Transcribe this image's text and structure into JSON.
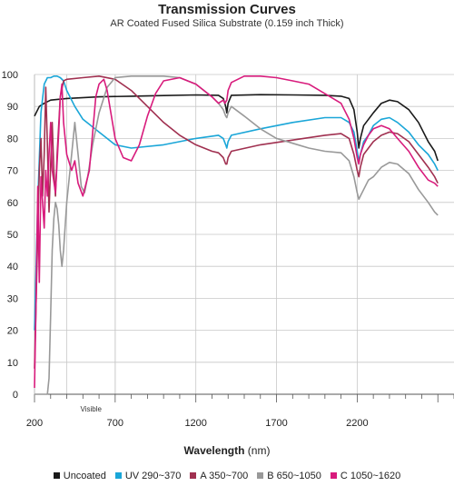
{
  "chart_data": {
    "type": "line",
    "title": "Transmission Curves",
    "subtitle": "AR Coated Fused Silica Substrate (0.159 inch Thick)",
    "xlabel": "Wavelength",
    "xunit": "(nm)",
    "ylabel": "",
    "xlim": [
      200,
      2800
    ],
    "ylim": [
      0,
      100
    ],
    "x_ticks": [
      200,
      700,
      1200,
      1700,
      2200
    ],
    "y_ticks": [
      0,
      10,
      20,
      30,
      40,
      50,
      60,
      70,
      80,
      90,
      100
    ],
    "annotation": "Visible",
    "visible_band": [
      400,
      700
    ],
    "grid": true,
    "legend_position": "bottom",
    "series": [
      {
        "name": "Uncoated",
        "color": "#1a1a1a",
        "points": [
          [
            200,
            87
          ],
          [
            230,
            90
          ],
          [
            260,
            91
          ],
          [
            300,
            92
          ],
          [
            400,
            92.5
          ],
          [
            600,
            93
          ],
          [
            800,
            93.2
          ],
          [
            1000,
            93.4
          ],
          [
            1200,
            93.6
          ],
          [
            1340,
            93.5
          ],
          [
            1370,
            92.5
          ],
          [
            1385,
            90
          ],
          [
            1392,
            88
          ],
          [
            1400,
            91
          ],
          [
            1420,
            93.5
          ],
          [
            1600,
            93.7
          ],
          [
            1800,
            93.6
          ],
          [
            2000,
            93.5
          ],
          [
            2100,
            93.2
          ],
          [
            2150,
            92.5
          ],
          [
            2180,
            89
          ],
          [
            2200,
            82
          ],
          [
            2210,
            77
          ],
          [
            2220,
            80
          ],
          [
            2240,
            84
          ],
          [
            2270,
            86
          ],
          [
            2300,
            88
          ],
          [
            2350,
            91
          ],
          [
            2400,
            92
          ],
          [
            2450,
            91.5
          ],
          [
            2520,
            89
          ],
          [
            2580,
            85
          ],
          [
            2640,
            79
          ],
          [
            2680,
            76
          ],
          [
            2700,
            73
          ]
        ]
      },
      {
        "name": "UV 290~370",
        "color": "#1aa6d8",
        "points": [
          [
            200,
            20
          ],
          [
            220,
            60
          ],
          [
            240,
            88
          ],
          [
            260,
            97
          ],
          [
            280,
            99
          ],
          [
            300,
            99
          ],
          [
            320,
            99.5
          ],
          [
            340,
            99.5
          ],
          [
            360,
            99
          ],
          [
            380,
            98
          ],
          [
            400,
            95
          ],
          [
            450,
            90
          ],
          [
            500,
            86
          ],
          [
            600,
            82
          ],
          [
            700,
            78
          ],
          [
            800,
            77
          ],
          [
            1000,
            78
          ],
          [
            1200,
            80
          ],
          [
            1340,
            81
          ],
          [
            1370,
            80
          ],
          [
            1385,
            78
          ],
          [
            1392,
            77
          ],
          [
            1400,
            79
          ],
          [
            1420,
            81
          ],
          [
            1600,
            83
          ],
          [
            1800,
            85
          ],
          [
            2000,
            86.5
          ],
          [
            2100,
            86.5
          ],
          [
            2150,
            85
          ],
          [
            2180,
            82
          ],
          [
            2200,
            76
          ],
          [
            2210,
            73
          ],
          [
            2220,
            75
          ],
          [
            2240,
            79
          ],
          [
            2270,
            81
          ],
          [
            2300,
            84
          ],
          [
            2350,
            86
          ],
          [
            2400,
            86.5
          ],
          [
            2450,
            85
          ],
          [
            2520,
            82
          ],
          [
            2580,
            78
          ],
          [
            2640,
            75
          ],
          [
            2680,
            72
          ],
          [
            2700,
            70
          ]
        ]
      },
      {
        "name": "A 350~700",
        "color": "#a03050",
        "points": [
          [
            200,
            8
          ],
          [
            215,
            40
          ],
          [
            230,
            70
          ],
          [
            240,
            80
          ],
          [
            250,
            62
          ],
          [
            260,
            75
          ],
          [
            270,
            96
          ],
          [
            280,
            78
          ],
          [
            290,
            57
          ],
          [
            300,
            72
          ],
          [
            310,
            85
          ],
          [
            320,
            70
          ],
          [
            330,
            62
          ],
          [
            340,
            75
          ],
          [
            360,
            93
          ],
          [
            380,
            98
          ],
          [
            400,
            98.5
          ],
          [
            500,
            99
          ],
          [
            600,
            99.5
          ],
          [
            700,
            98.5
          ],
          [
            800,
            95
          ],
          [
            900,
            90
          ],
          [
            1000,
            85
          ],
          [
            1100,
            81
          ],
          [
            1200,
            78
          ],
          [
            1300,
            76
          ],
          [
            1340,
            75.5
          ],
          [
            1370,
            74
          ],
          [
            1385,
            72
          ],
          [
            1392,
            72
          ],
          [
            1400,
            74
          ],
          [
            1420,
            76
          ],
          [
            1600,
            78
          ],
          [
            1800,
            79.5
          ],
          [
            2000,
            81
          ],
          [
            2100,
            81.5
          ],
          [
            2150,
            80
          ],
          [
            2180,
            75
          ],
          [
            2200,
            70
          ],
          [
            2210,
            68
          ],
          [
            2220,
            71
          ],
          [
            2240,
            75
          ],
          [
            2270,
            77
          ],
          [
            2300,
            79
          ],
          [
            2350,
            81
          ],
          [
            2400,
            82
          ],
          [
            2450,
            81.5
          ],
          [
            2520,
            79
          ],
          [
            2580,
            75
          ],
          [
            2640,
            71
          ],
          [
            2680,
            68
          ],
          [
            2700,
            66
          ]
        ]
      },
      {
        "name": "B 650~1050",
        "color": "#999999",
        "points": [
          [
            200,
            0
          ],
          [
            260,
            0
          ],
          [
            280,
            0
          ],
          [
            290,
            5
          ],
          [
            300,
            25
          ],
          [
            310,
            45
          ],
          [
            320,
            55
          ],
          [
            330,
            60
          ],
          [
            340,
            58
          ],
          [
            350,
            53
          ],
          [
            360,
            45
          ],
          [
            370,
            40
          ],
          [
            380,
            45
          ],
          [
            400,
            60
          ],
          [
            430,
            75
          ],
          [
            450,
            85
          ],
          [
            470,
            75
          ],
          [
            490,
            65
          ],
          [
            510,
            63
          ],
          [
            530,
            68
          ],
          [
            560,
            78
          ],
          [
            600,
            88
          ],
          [
            650,
            96
          ],
          [
            700,
            99
          ],
          [
            800,
            99.5
          ],
          [
            900,
            99.5
          ],
          [
            1000,
            99.5
          ],
          [
            1100,
            99
          ],
          [
            1200,
            97
          ],
          [
            1300,
            93
          ],
          [
            1340,
            91
          ],
          [
            1370,
            89
          ],
          [
            1385,
            87
          ],
          [
            1392,
            86.5
          ],
          [
            1400,
            88
          ],
          [
            1420,
            90
          ],
          [
            1500,
            87
          ],
          [
            1600,
            83
          ],
          [
            1700,
            80
          ],
          [
            1800,
            78.5
          ],
          [
            1900,
            77
          ],
          [
            2000,
            76
          ],
          [
            2100,
            75.5
          ],
          [
            2150,
            73
          ],
          [
            2180,
            68
          ],
          [
            2200,
            63
          ],
          [
            2210,
            61
          ],
          [
            2220,
            62
          ],
          [
            2240,
            64
          ],
          [
            2270,
            67
          ],
          [
            2300,
            68
          ],
          [
            2350,
            71
          ],
          [
            2400,
            72.5
          ],
          [
            2450,
            72
          ],
          [
            2520,
            69
          ],
          [
            2580,
            64
          ],
          [
            2640,
            60
          ],
          [
            2680,
            57
          ],
          [
            2700,
            56
          ]
        ]
      },
      {
        "name": "C 1050~1620",
        "color": "#d81b7c",
        "points": [
          [
            200,
            2
          ],
          [
            210,
            30
          ],
          [
            220,
            65
          ],
          [
            230,
            35
          ],
          [
            240,
            68
          ],
          [
            250,
            60
          ],
          [
            260,
            52
          ],
          [
            270,
            70
          ],
          [
            280,
            62
          ],
          [
            290,
            75
          ],
          [
            300,
            85
          ],
          [
            310,
            70
          ],
          [
            330,
            63
          ],
          [
            350,
            82
          ],
          [
            360,
            93
          ],
          [
            370,
            97
          ],
          [
            380,
            85
          ],
          [
            400,
            75
          ],
          [
            430,
            70
          ],
          [
            450,
            73
          ],
          [
            470,
            66
          ],
          [
            500,
            62
          ],
          [
            540,
            70
          ],
          [
            580,
            93
          ],
          [
            600,
            97
          ],
          [
            630,
            98.5
          ],
          [
            650,
            95
          ],
          [
            700,
            80
          ],
          [
            750,
            74
          ],
          [
            800,
            73
          ],
          [
            850,
            78
          ],
          [
            900,
            87
          ],
          [
            950,
            94
          ],
          [
            1000,
            98
          ],
          [
            1100,
            99
          ],
          [
            1200,
            97
          ],
          [
            1300,
            93
          ],
          [
            1340,
            91
          ],
          [
            1370,
            92
          ],
          [
            1380,
            91
          ],
          [
            1392,
            92
          ],
          [
            1400,
            95
          ],
          [
            1420,
            97.5
          ],
          [
            1500,
            99.5
          ],
          [
            1600,
            99.5
          ],
          [
            1700,
            99
          ],
          [
            1800,
            98
          ],
          [
            1900,
            97
          ],
          [
            2000,
            94
          ],
          [
            2100,
            91
          ],
          [
            2150,
            86
          ],
          [
            2180,
            80
          ],
          [
            2200,
            74
          ],
          [
            2210,
            72
          ],
          [
            2220,
            75
          ],
          [
            2240,
            78
          ],
          [
            2270,
            81
          ],
          [
            2300,
            83
          ],
          [
            2350,
            84
          ],
          [
            2400,
            83
          ],
          [
            2450,
            80
          ],
          [
            2520,
            76
          ],
          [
            2580,
            71
          ],
          [
            2640,
            67
          ],
          [
            2680,
            66
          ],
          [
            2700,
            65
          ]
        ]
      }
    ]
  }
}
